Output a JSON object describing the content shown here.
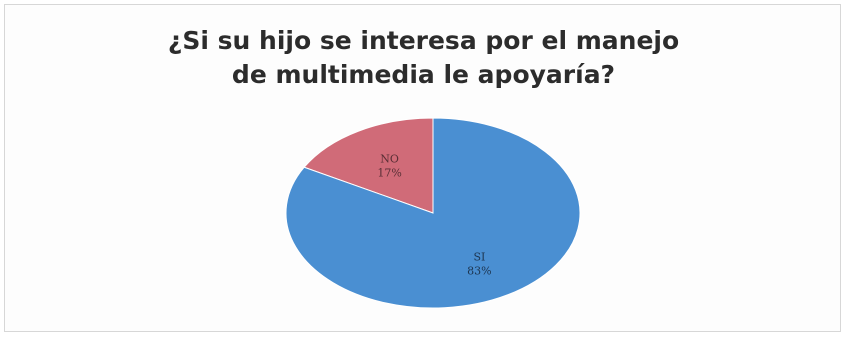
{
  "chart_data": {
    "type": "pie",
    "title_lines": [
      "¿Si su hijo se interesa por el manejo",
      "de multimedia le apoyaría?"
    ],
    "slices": [
      {
        "category": "NO",
        "value": 17,
        "label": "17%",
        "color": "#d06b78"
      },
      {
        "category": "SI",
        "value": 83,
        "label": "83%",
        "color": "#4a8fd2"
      }
    ]
  }
}
